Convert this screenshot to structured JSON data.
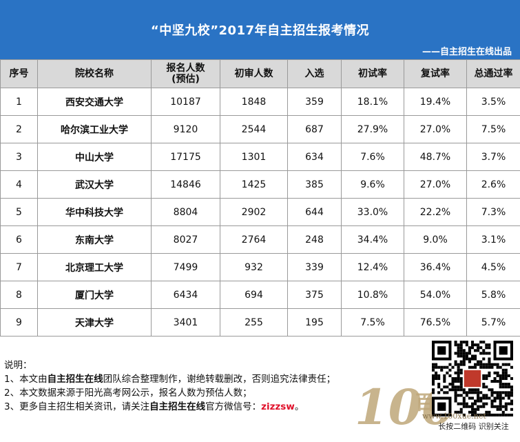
{
  "header": {
    "title": "“中坚九校”2017年自主招生报考情况",
    "subtitle": "——自主招生在线出品"
  },
  "table": {
    "columns": [
      "序号",
      "院校名称",
      "报名人数\n(预估)",
      "初审人数",
      "入选",
      "初试率",
      "复试率",
      "总通过率"
    ],
    "column_header_lines": [
      [
        "序号"
      ],
      [
        "院校名称"
      ],
      [
        "报名人数",
        "(预估)"
      ],
      [
        "初审人数"
      ],
      [
        "入选"
      ],
      [
        "初试率"
      ],
      [
        "复试率"
      ],
      [
        "总通过率"
      ]
    ],
    "rows": [
      [
        "1",
        "西安交通大学",
        "10187",
        "1848",
        "359",
        "18.1%",
        "19.4%",
        "3.5%"
      ],
      [
        "2",
        "哈尔滨工业大学",
        "9120",
        "2544",
        "687",
        "27.9%",
        "27.0%",
        "7.5%"
      ],
      [
        "3",
        "中山大学",
        "17175",
        "1301",
        "634",
        "7.6%",
        "48.7%",
        "3.7%"
      ],
      [
        "4",
        "武汉大学",
        "14846",
        "1425",
        "385",
        "9.6%",
        "27.0%",
        "2.6%"
      ],
      [
        "5",
        "华中科技大学",
        "8804",
        "2902",
        "644",
        "33.0%",
        "22.2%",
        "7.3%"
      ],
      [
        "6",
        "东南大学",
        "8027",
        "2764",
        "248",
        "34.4%",
        "9.0%",
        "3.1%"
      ],
      [
        "7",
        "北京理工大学",
        "7499",
        "932",
        "339",
        "12.4%",
        "36.4%",
        "4.5%"
      ],
      [
        "8",
        "厦门大学",
        "6434",
        "694",
        "375",
        "10.8%",
        "54.0%",
        "5.8%"
      ],
      [
        "9",
        "天津大学",
        "3401",
        "255",
        "195",
        "7.5%",
        "76.5%",
        "5.7%"
      ]
    ]
  },
  "notes": {
    "heading": "说明：",
    "line1": {
      "pre": "1、本文由",
      "bold": "自主招生在线",
      "post": "团队综合整理制作，谢绝转载删改，否则追究法律责任；"
    },
    "line2": "2、本文数据来源于阳光高考网公示，报名人数为预估人数；",
    "line3": {
      "pre": "3、更多自主招生相关资讯，请关注",
      "bold": "自主招生在线",
      "mid": "官方微信号：",
      "wechat": "zizzsw",
      "post": "。"
    }
  },
  "branding": {
    "logo_number": "100",
    "logo_chars": "百学",
    "url": "www.100xue.net",
    "qr_caption": "长按二维码   识别关注"
  },
  "colors": {
    "banner": "#2a73c4",
    "header_row": "#d9d9d9",
    "wechat_id": "#e0102a"
  }
}
